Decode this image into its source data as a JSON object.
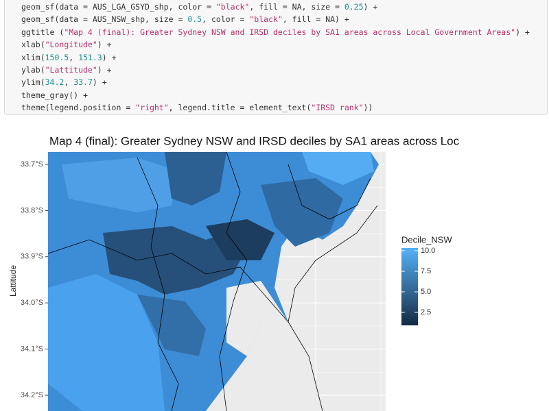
{
  "code": {
    "lines": [
      "geom_sf(data = AUS_LGA_GSYD_shp, color = \"black\", fill = NA, size = 0.25) +",
      "geom_sf(data = AUS_NSW_shp, size = 0.5, color = \"black\", fill = NA) +",
      "ggtitle (\"Map 4 (final): Greater Sydney NSW and IRSD deciles by SA1 areas across Local Government Areas\") +",
      "xlab(\"Longitude\") +",
      "xlim(150.5, 151.3) +",
      "ylab(\"Lattitude\") +",
      "ylim(34.2, 33.7) +",
      "theme_gray() +",
      "theme(legend.position = \"right\", legend.title = element_text(\"IRSD rank\"))"
    ]
  },
  "plot": {
    "title": "Map 4 (final): Greater Sydney NSW and IRSD deciles by SA1 areas across Loc",
    "ylabel": "Lattitude",
    "yticks": [
      "33.7°S",
      "33.8°S",
      "33.9°S",
      "34.0°S",
      "34.1°S",
      "34.2°S"
    ],
    "legend": {
      "title": "Decile_NSW",
      "ticks": [
        "10.0",
        "7.5",
        "5.0",
        "2.5"
      ]
    }
  }
}
